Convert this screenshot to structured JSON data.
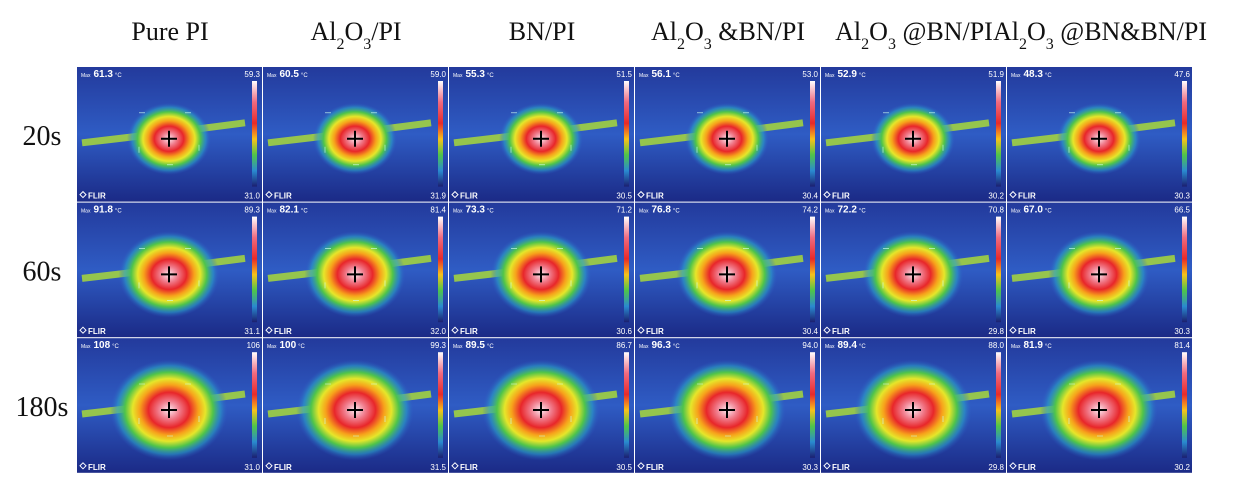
{
  "columns": [
    {
      "segments": [
        {
          "text": "Pure PI"
        }
      ]
    },
    {
      "segments": [
        {
          "text": "Al"
        },
        {
          "text": "2",
          "sub": true
        },
        {
          "text": "O"
        },
        {
          "text": "3",
          "sub": true
        },
        {
          "text": "/PI"
        }
      ]
    },
    {
      "segments": [
        {
          "text": "BN/PI"
        }
      ]
    },
    {
      "segments": [
        {
          "text": "Al"
        },
        {
          "text": "2",
          "sub": true
        },
        {
          "text": "O"
        },
        {
          "text": "3",
          "sub": true
        },
        {
          "text": " &BN/PI"
        }
      ]
    },
    {
      "segments": [
        {
          "text": "Al"
        },
        {
          "text": "2",
          "sub": true
        },
        {
          "text": "O"
        },
        {
          "text": "3",
          "sub": true
        },
        {
          "text": " @BN/PI"
        }
      ]
    },
    {
      "segments": [
        {
          "text": "Al"
        },
        {
          "text": "2",
          "sub": true
        },
        {
          "text": "O"
        },
        {
          "text": "3",
          "sub": true
        },
        {
          "text": " @BN&BN/PI"
        }
      ]
    }
  ],
  "max_prefix": "Max",
  "unit": "°C",
  "brand": "FLIR",
  "rows": [
    {
      "label": "20s",
      "cells": [
        {
          "max": "61.3",
          "scale_top": "59.3",
          "scale_bottom": "31.0"
        },
        {
          "max": "60.5",
          "scale_top": "59.0",
          "scale_bottom": "31.9"
        },
        {
          "max": "55.3",
          "scale_top": "51.5",
          "scale_bottom": "30.5"
        },
        {
          "max": "56.1",
          "scale_top": "53.0",
          "scale_bottom": "30.4"
        },
        {
          "max": "52.9",
          "scale_top": "51.9",
          "scale_bottom": "30.2"
        },
        {
          "max": "48.3",
          "scale_top": "47.6",
          "scale_bottom": "30.3"
        }
      ]
    },
    {
      "label": "60s",
      "cells": [
        {
          "max": "91.8",
          "scale_top": "89.3",
          "scale_bottom": "31.1"
        },
        {
          "max": "82.1",
          "scale_top": "81.4",
          "scale_bottom": "32.0"
        },
        {
          "max": "73.3",
          "scale_top": "71.2",
          "scale_bottom": "30.6"
        },
        {
          "max": "76.8",
          "scale_top": "74.2",
          "scale_bottom": "30.4"
        },
        {
          "max": "72.2",
          "scale_top": "70.8",
          "scale_bottom": "29.8"
        },
        {
          "max": "67.0",
          "scale_top": "66.5",
          "scale_bottom": "30.3"
        }
      ]
    },
    {
      "label": "180s",
      "cells": [
        {
          "max": "108",
          "scale_top": "106",
          "scale_bottom": "31.0"
        },
        {
          "max": "100",
          "scale_top": "99.3",
          "scale_bottom": "31.5"
        },
        {
          "max": "89.5",
          "scale_top": "86.7",
          "scale_bottom": "30.5"
        },
        {
          "max": "96.3",
          "scale_top": "94.0",
          "scale_bottom": "30.3"
        },
        {
          "max": "89.4",
          "scale_top": "88.0",
          "scale_bottom": "29.8"
        },
        {
          "max": "81.9",
          "scale_top": "81.4",
          "scale_bottom": "30.2"
        }
      ]
    }
  ]
}
